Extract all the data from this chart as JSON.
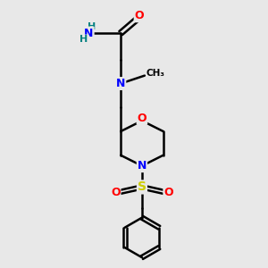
{
  "bg_color": "#e8e8e8",
  "atom_colors": {
    "C": "#000000",
    "N": "#0000ff",
    "O": "#ff0000",
    "S": "#cccc00",
    "H": "#008080"
  },
  "bond_color": "#000000",
  "bond_width": 1.8
}
